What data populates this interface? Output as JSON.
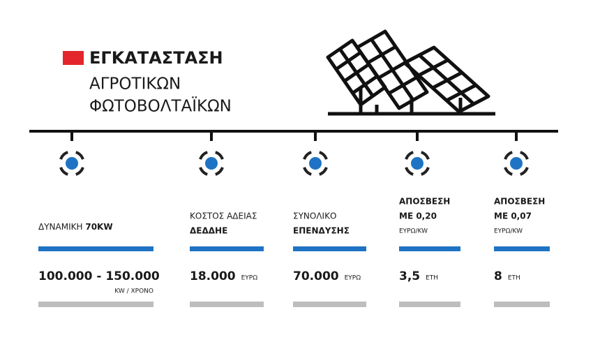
{
  "header": {
    "title": "ΕΓΚΑΤΑΣΤΑΣΗ",
    "subtitle": [
      "ΑΓΡΟΤΙΚΩΝ",
      "ΦΩΤΟΒΟΛΤΑΪΚΩΝ"
    ]
  },
  "columns": [
    {
      "label": [
        "ΔΥΝΑΜΙΚΗ",
        "70KW"
      ],
      "value": "100.000 - 150.000",
      "unit": "KW / ΧΡΟΝΟ"
    },
    {
      "label": [
        "ΚΟΣΤΟΣ ΑΔΕΙΑΣ",
        "ΔΕΔΔΗΕ"
      ],
      "value": "18.000",
      "unit": "ΕΥΡΩ"
    },
    {
      "label": [
        "ΣΥΝΟΛΙΚΟ",
        "ΕΠΕΝΔΥΣΗΣ"
      ],
      "value": "70.000",
      "unit": "ΕΥΡΩ"
    },
    {
      "label": [
        "ΑΠΟΣΒΕΣΗ",
        "ΜΕ 0,20"
      ],
      "note": "ΕΥΡΩ/KW",
      "value": "3,5",
      "unit": "ΕΤΗ"
    },
    {
      "label": [
        "ΑΠΟΣΒΕΣΗ",
        "ΜΕ 0,07"
      ],
      "note": "ΕΥΡΩ/KW",
      "value": "8",
      "unit": "ΕΤΗ"
    }
  ]
}
